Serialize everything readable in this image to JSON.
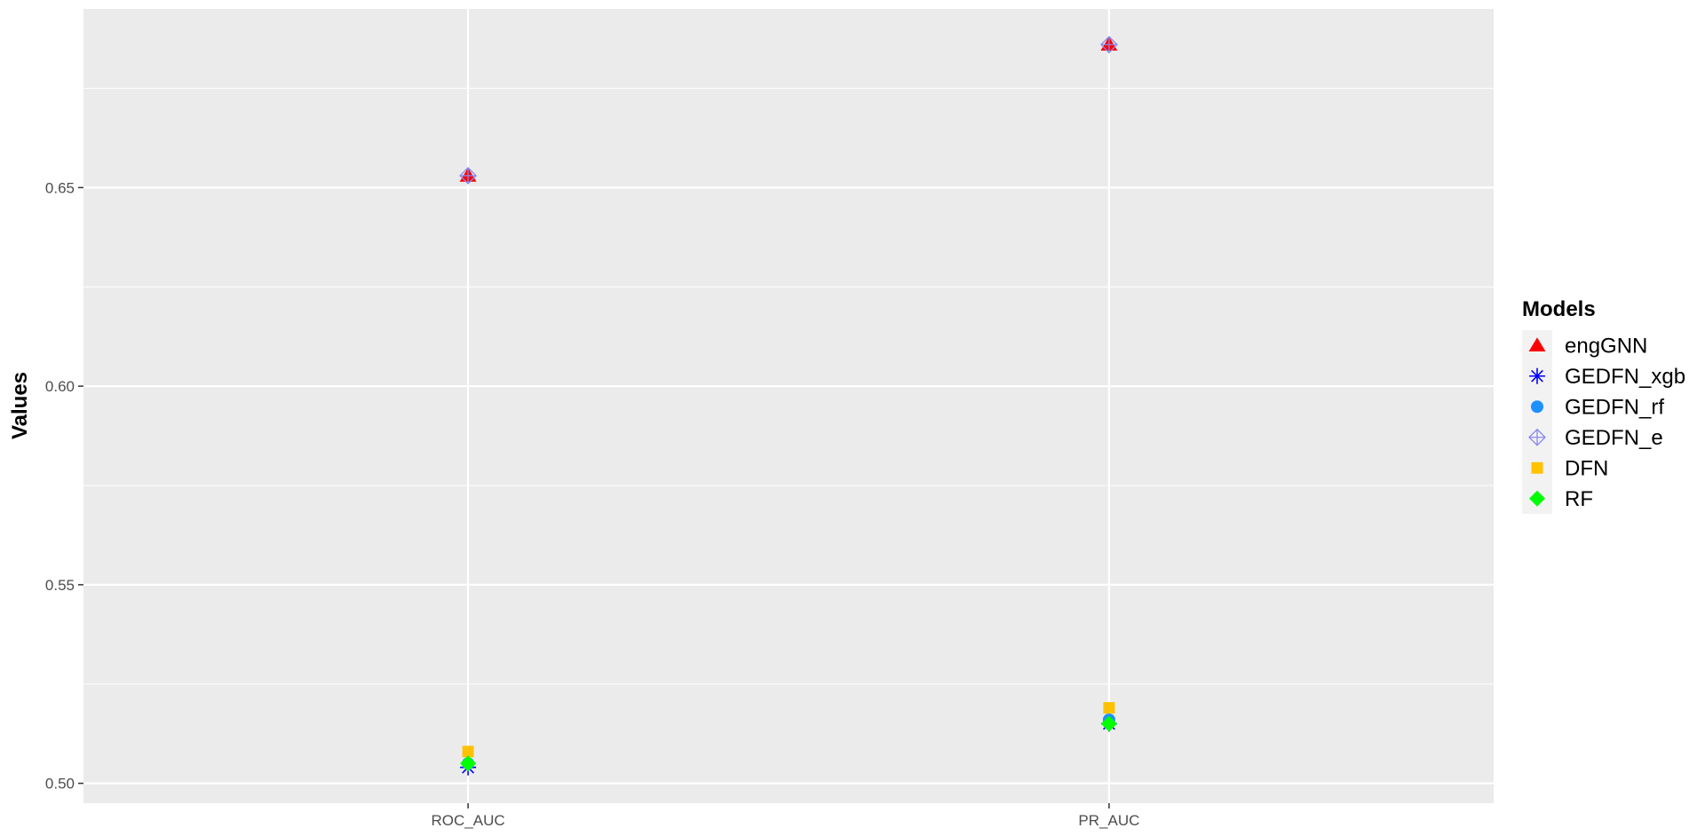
{
  "chart_data": {
    "type": "scatter",
    "title": "",
    "xlabel": "",
    "ylabel": "Values",
    "categories": [
      "ROC_AUC",
      "PR_AUC"
    ],
    "ylim": [
      0.495,
      0.695
    ],
    "yticks": [
      "0.50",
      "0.55",
      "0.60",
      "0.65"
    ],
    "ytick_values": [
      0.5,
      0.55,
      0.6,
      0.65
    ],
    "grid": true,
    "background": "#EBEBEB",
    "legend": {
      "title": "Models",
      "placement": "right"
    },
    "series": [
      {
        "name": "engGNN",
        "shape": "triangle",
        "color": "#FF0000",
        "values": [
          0.653,
          0.686
        ]
      },
      {
        "name": "GEDFN_xgb",
        "shape": "asterisk",
        "color": "#0000FF",
        "values": [
          0.504,
          0.515
        ]
      },
      {
        "name": "GEDFN_rf",
        "shape": "circle",
        "color": "#1E90FF",
        "values": [
          0.505,
          0.516
        ]
      },
      {
        "name": "GEDFN_e",
        "shape": "diamond-plus",
        "color": "#8888EE",
        "values": [
          0.653,
          0.686
        ]
      },
      {
        "name": "DFN",
        "shape": "square",
        "color": "#FFC200",
        "values": [
          0.508,
          0.519
        ]
      },
      {
        "name": "RF",
        "shape": "diamond",
        "color": "#00FF00",
        "values": [
          0.505,
          0.515
        ]
      }
    ]
  }
}
